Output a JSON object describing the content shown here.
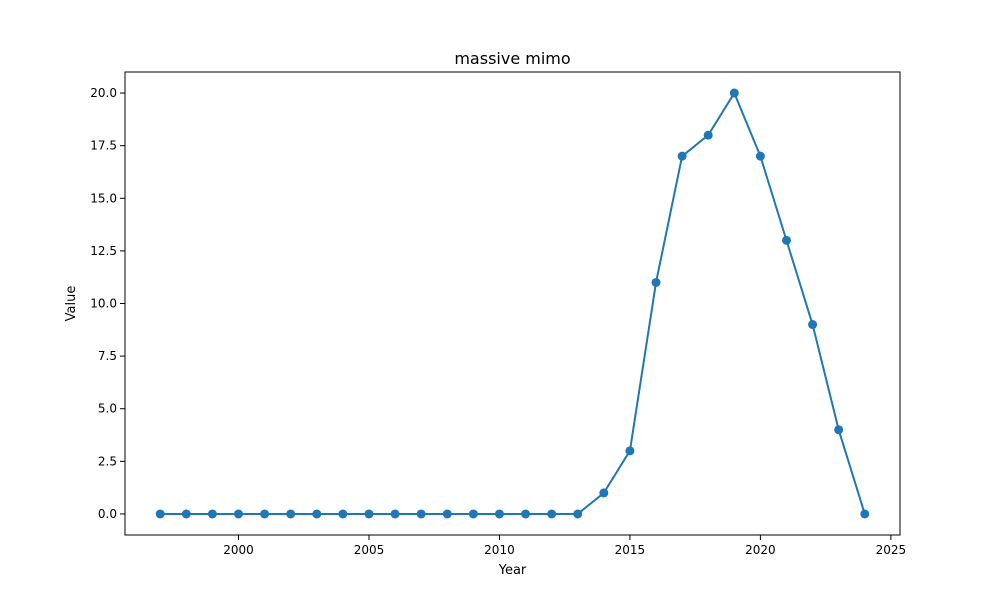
{
  "chart_data": {
    "type": "line",
    "title": "massive mimo",
    "xlabel": "Year",
    "ylabel": "Value",
    "xlim": [
      1995.65,
      2025.35
    ],
    "ylim": [
      -1.0,
      21.0
    ],
    "xticks": [
      2000,
      2005,
      2010,
      2015,
      2020,
      2025
    ],
    "xtick_labels": [
      "2000",
      "2005",
      "2010",
      "2015",
      "2020",
      "2025"
    ],
    "yticks": [
      0,
      2.5,
      5,
      7.5,
      10,
      12.5,
      15,
      17.5,
      20
    ],
    "ytick_labels": [
      "0.0",
      "2.5",
      "5.0",
      "7.5",
      "10.0",
      "12.5",
      "15.0",
      "17.5",
      "20.0"
    ],
    "grid": false,
    "series": [
      {
        "color": "#1f77b4",
        "marker": "circle",
        "x": [
          1997,
          1998,
          1999,
          2000,
          2001,
          2002,
          2003,
          2004,
          2005,
          2006,
          2007,
          2008,
          2009,
          2010,
          2011,
          2012,
          2013,
          2014,
          2015,
          2016,
          2017,
          2018,
          2019,
          2020,
          2021,
          2022,
          2023,
          2024
        ],
        "values": [
          0,
          0,
          0,
          0,
          0,
          0,
          0,
          0,
          0,
          0,
          0,
          0,
          0,
          0,
          0,
          0,
          0,
          1,
          3,
          11,
          17,
          18,
          20,
          17,
          13,
          9,
          4,
          0
        ]
      }
    ]
  }
}
